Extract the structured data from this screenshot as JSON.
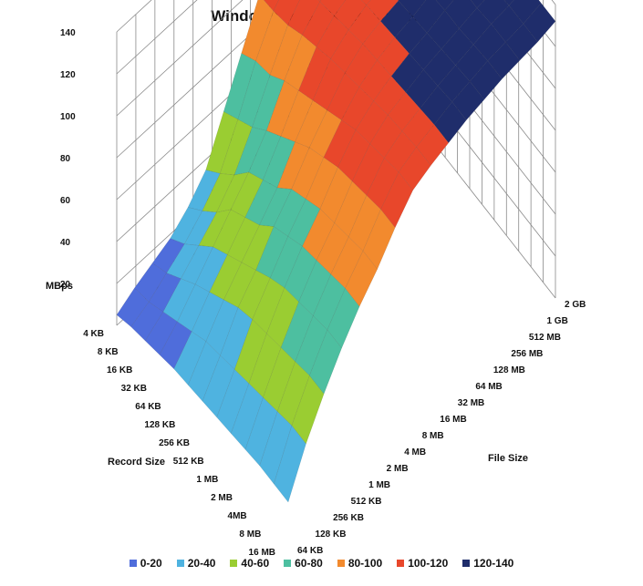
{
  "chart_data": {
    "type": "surface3d",
    "title": "Windows NFS - Random Read",
    "zlabel": "MBps",
    "xlabel": "File Size",
    "ylabel": "Record Size",
    "zlim": [
      0,
      140
    ],
    "z_ticks": [
      "140",
      "120",
      "100",
      "80",
      "60",
      "40",
      "20"
    ],
    "file_sizes": [
      "64 KB",
      "128 KB",
      "256 KB",
      "512 KB",
      "1 MB",
      "2 MB",
      "4 MB",
      "8 MB",
      "16 MB",
      "32 MB",
      "64 MB",
      "128 MB",
      "256 MB",
      "512 MB",
      "1 GB",
      "2 GB"
    ],
    "record_sizes": [
      "4 KB",
      "8 KB",
      "16 KB",
      "32 KB",
      "64 KB",
      "128 KB",
      "256 KB",
      "512 KB",
      "1 MB",
      "2 MB",
      "4MB",
      "8 MB",
      "16 MB"
    ],
    "values": [
      [
        5,
        10,
        14,
        18,
        25,
        35,
        55,
        75,
        95,
        105,
        110,
        115,
        118,
        120,
        122,
        125
      ],
      [
        8,
        12,
        18,
        24,
        32,
        42,
        60,
        80,
        96,
        106,
        112,
        116,
        119,
        121,
        123,
        126
      ],
      [
        10,
        16,
        24,
        32,
        40,
        50,
        65,
        82,
        98,
        108,
        113,
        117,
        120,
        122,
        124,
        127
      ],
      [
        12,
        20,
        30,
        40,
        50,
        60,
        72,
        88,
        102,
        110,
        115,
        118,
        121,
        123,
        125,
        128
      ],
      [
        14,
        24,
        35,
        45,
        55,
        65,
        78,
        92,
        105,
        112,
        116,
        119,
        122,
        124,
        125,
        128
      ],
      [
        15,
        28,
        40,
        50,
        60,
        70,
        84,
        96,
        108,
        114,
        118,
        120,
        123,
        125,
        126,
        129
      ],
      [
        16,
        30,
        45,
        55,
        68,
        78,
        90,
        100,
        110,
        116,
        119,
        121,
        124,
        126,
        127,
        130
      ],
      [
        17,
        32,
        48,
        60,
        72,
        82,
        94,
        104,
        112,
        117,
        120,
        122,
        125,
        127,
        128,
        130
      ],
      [
        18,
        34,
        50,
        64,
        76,
        86,
        98,
        108,
        114,
        118,
        121,
        123,
        126,
        128,
        129,
        131
      ],
      [
        19,
        36,
        52,
        66,
        78,
        88,
        100,
        110,
        116,
        119,
        122,
        124,
        126,
        128,
        129,
        131
      ],
      [
        20,
        38,
        54,
        68,
        80,
        90,
        102,
        112,
        117,
        120,
        123,
        125,
        127,
        129,
        130,
        132
      ],
      [
        20,
        40,
        56,
        70,
        82,
        92,
        104,
        114,
        118,
        121,
        124,
        126,
        128,
        129,
        130,
        132
      ],
      [
        20,
        40,
        56,
        70,
        82,
        92,
        104,
        114,
        118,
        121,
        124,
        126,
        128,
        129,
        130,
        132
      ]
    ],
    "legend": [
      {
        "label": "0-20",
        "color": "#4F6DDB"
      },
      {
        "label": "20-40",
        "color": "#4FB3E0"
      },
      {
        "label": "40-60",
        "color": "#9ACD32"
      },
      {
        "label": "60-80",
        "color": "#4DBFA0"
      },
      {
        "label": "80-100",
        "color": "#F28A2E"
      },
      {
        "label": "100-120",
        "color": "#E8472B"
      },
      {
        "label": "120-140",
        "color": "#1F2D6B"
      }
    ],
    "legend_position": "bottom",
    "grid": true
  }
}
